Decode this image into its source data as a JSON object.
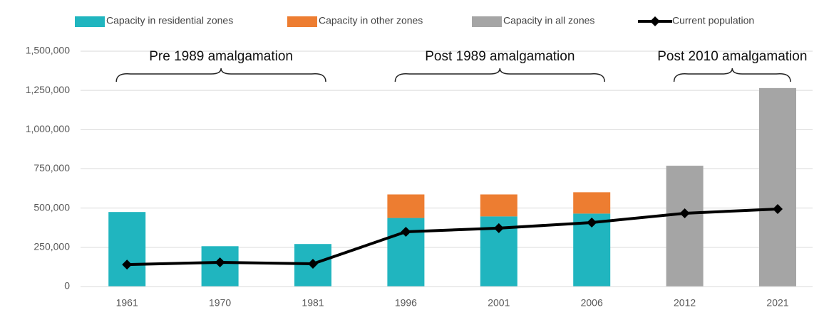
{
  "chart_data": {
    "type": "bar",
    "categories": [
      "1961",
      "1970",
      "1981",
      "1996",
      "2001",
      "2006",
      "2012",
      "2021"
    ],
    "series": [
      {
        "name": "Capacity in residential zones",
        "color": "#20b5bf",
        "values": [
          475000,
          257000,
          271000,
          437000,
          447000,
          465000,
          null,
          null
        ]
      },
      {
        "name": "Capacity in other zones",
        "color": "#ed7d31",
        "values": [
          null,
          null,
          null,
          150000,
          140000,
          136000,
          null,
          null
        ]
      },
      {
        "name": "Capacity in all zones",
        "color": "#a5a5a5",
        "values": [
          null,
          null,
          null,
          null,
          null,
          null,
          770000,
          1265000
        ]
      },
      {
        "name": "Current population",
        "color": "#000000",
        "type": "line",
        "values": [
          140000,
          154000,
          145000,
          349000,
          372000,
          408000,
          467000,
          494000
        ]
      }
    ],
    "annotations": [
      "Pre 1989 amalgamation",
      "Post 1989 amalgamation",
      "Post 2010 amalgamation"
    ],
    "ylim": [
      0,
      1500000
    ],
    "yticks": [
      0,
      {
        "value": 250000,
        "label": "250,000"
      },
      {
        "value": 500000,
        "label": "500,000"
      },
      {
        "value": 750000,
        "label": "750,000"
      },
      {
        "value": 1000000,
        "label": "1,000,000"
      },
      {
        "value": 1250000,
        "label": "1,250,000"
      },
      {
        "value": 1500000,
        "label": "1,500,000"
      }
    ],
    "grid": true,
    "legend": "top"
  }
}
